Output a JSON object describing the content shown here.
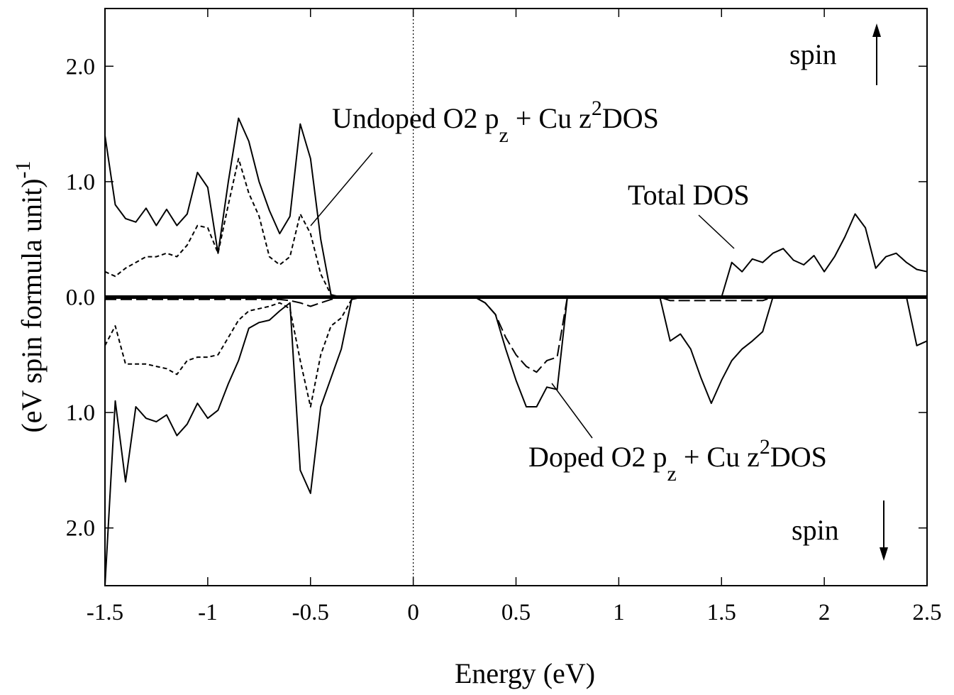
{
  "chart_data": {
    "type": "line",
    "xlabel": "Energy (eV)",
    "ylabel_parts": [
      "(eV spin formula unit)",
      "-1"
    ],
    "xlim": [
      -1.5,
      2.5
    ],
    "ylim": [
      -2.5,
      2.5
    ],
    "xticks": [
      -1.5,
      -1,
      -0.5,
      0,
      0.5,
      1,
      1.5,
      2,
      2.5
    ],
    "yticks": [
      {
        "value": 2,
        "label": "2.0"
      },
      {
        "value": 1,
        "label": "1.0"
      },
      {
        "value": 0,
        "label": "0.0"
      },
      {
        "value": -1,
        "label": "1.0"
      },
      {
        "value": -2,
        "label": "2.0"
      }
    ],
    "vline": 0,
    "hline": 0,
    "x": [
      -1.5,
      -1.45,
      -1.4,
      -1.35,
      -1.3,
      -1.25,
      -1.2,
      -1.15,
      -1.1,
      -1.05,
      -1,
      -0.95,
      -0.9,
      -0.85,
      -0.8,
      -0.75,
      -0.7,
      -0.65,
      -0.6,
      -0.55,
      -0.5,
      -0.45,
      -0.4,
      -0.35,
      -0.3,
      -0.25,
      -0.2,
      -0.15,
      -0.1,
      -0.05,
      0,
      0.05,
      0.1,
      0.15,
      0.2,
      0.25,
      0.3,
      0.35,
      0.4,
      0.45,
      0.5,
      0.55,
      0.6,
      0.65,
      0.7,
      0.75,
      0.8,
      0.85,
      0.9,
      0.95,
      1,
      1.05,
      1.1,
      1.15,
      1.2,
      1.25,
      1.3,
      1.35,
      1.4,
      1.45,
      1.5,
      1.55,
      1.6,
      1.65,
      1.7,
      1.75,
      1.8,
      1.85,
      1.9,
      1.95,
      2,
      2.05,
      2.1,
      2.15,
      2.2,
      2.25,
      2.3,
      2.35,
      2.4,
      2.45,
      2.5
    ],
    "series": [
      {
        "color": "#000000",
        "style": "solid",
        "values": [
          1.4,
          0.8,
          0.68,
          0.65,
          0.77,
          0.62,
          0.76,
          0.62,
          0.72,
          1.08,
          0.95,
          0.38,
          1,
          1.55,
          1.35,
          1,
          0.75,
          0.55,
          0.7,
          1.5,
          1.2,
          0.5,
          0.02,
          0,
          0,
          0,
          0,
          0,
          0,
          0,
          0,
          0,
          0,
          0,
          0,
          0,
          0,
          0,
          0,
          0,
          0,
          0,
          0,
          0,
          0,
          0,
          0,
          0,
          0,
          0,
          0,
          0,
          0,
          0,
          0,
          0,
          0,
          0,
          0,
          0,
          0,
          0.3,
          0.22,
          0.33,
          0.3,
          0.38,
          0.42,
          0.32,
          0.28,
          0.36,
          0.22,
          0.35,
          0.52,
          0.72,
          0.6,
          0.25,
          0.35,
          0.38,
          0.3,
          0.24,
          0.22
        ]
      },
      {
        "color": "#000000",
        "style": "dotted",
        "values": [
          0.22,
          0.18,
          0.25,
          0.3,
          0.35,
          0.35,
          0.38,
          0.35,
          0.45,
          0.62,
          0.6,
          0.38,
          0.8,
          1.2,
          0.9,
          0.7,
          0.35,
          0.28,
          0.35,
          0.72,
          0.55,
          0.2,
          0.02,
          0,
          0,
          0,
          0,
          0,
          0,
          0,
          0,
          0,
          0,
          0,
          0,
          0,
          0,
          0,
          0,
          0,
          0,
          0,
          0,
          0,
          0,
          0,
          0,
          0,
          0,
          0,
          0,
          0,
          0,
          0,
          0,
          0,
          0,
          0,
          0,
          0,
          0,
          0,
          0,
          0,
          0,
          0,
          0,
          0,
          0,
          0,
          0,
          0,
          0,
          0,
          0,
          0,
          0,
          0,
          0,
          0,
          0
        ]
      },
      {
        "color": "#000000",
        "style": "solid",
        "values": [
          -2.5,
          -0.9,
          -1.6,
          -0.95,
          -1.05,
          -1.08,
          -1.02,
          -1.2,
          -1.1,
          -0.92,
          -1.05,
          -0.98,
          -0.75,
          -0.55,
          -0.27,
          -0.22,
          -0.2,
          -0.12,
          -0.05,
          -1.5,
          -1.7,
          -0.95,
          -0.7,
          -0.45,
          -0.02,
          0,
          0,
          0,
          0,
          0,
          0,
          0,
          0,
          0,
          0,
          0,
          0,
          -0.05,
          -0.15,
          -0.45,
          -0.72,
          -0.95,
          -0.95,
          -0.78,
          -0.8,
          0,
          0,
          0,
          0,
          0,
          0,
          0,
          0,
          0,
          0,
          -0.38,
          -0.32,
          -0.45,
          -0.7,
          -0.92,
          -0.72,
          -0.55,
          -0.45,
          -0.38,
          -0.3,
          0,
          0,
          0,
          0,
          0,
          0,
          0,
          0,
          0,
          0,
          0,
          0,
          0,
          0,
          -0.42,
          -0.38
        ]
      },
      {
        "color": "#000000",
        "style": "dotted",
        "values": [
          -0.42,
          -0.25,
          -0.58,
          -0.58,
          -0.58,
          -0.6,
          -0.62,
          -0.67,
          -0.55,
          -0.52,
          -0.52,
          -0.5,
          -0.35,
          -0.2,
          -0.12,
          -0.1,
          -0.08,
          -0.05,
          -0.1,
          -0.55,
          -0.95,
          -0.5,
          -0.25,
          -0.18,
          -0.02,
          0,
          0,
          0,
          0,
          0,
          0,
          0,
          0,
          0,
          0,
          0,
          0,
          0,
          0,
          0,
          0,
          0,
          0,
          0,
          0,
          0,
          0,
          0,
          0,
          0,
          0,
          0,
          0,
          0,
          0,
          0,
          0,
          0,
          0,
          0,
          0,
          0,
          0,
          0,
          0,
          0,
          0,
          0,
          0,
          0,
          0,
          0,
          0,
          0,
          0,
          0,
          0,
          0,
          0,
          0,
          0
        ]
      },
      {
        "color": "#000000",
        "style": "dashed",
        "values": [
          -0.02,
          -0.02,
          -0.02,
          -0.02,
          -0.02,
          -0.02,
          -0.02,
          -0.02,
          -0.02,
          -0.02,
          -0.02,
          -0.02,
          -0.02,
          -0.02,
          -0.02,
          -0.02,
          -0.02,
          -0.02,
          -0.03,
          -0.05,
          -0.08,
          -0.05,
          -0.02,
          0,
          0,
          0,
          0,
          0,
          0,
          0,
          0,
          0,
          0,
          0,
          0,
          0,
          0,
          -0.05,
          -0.15,
          -0.35,
          -0.5,
          -0.6,
          -0.65,
          -0.55,
          -0.52,
          0,
          0,
          0,
          0,
          0,
          0,
          0,
          0,
          0,
          0,
          -0.03,
          -0.03,
          -0.03,
          -0.03,
          -0.03,
          -0.03,
          -0.03,
          -0.03,
          -0.03,
          -0.03,
          0,
          0,
          0,
          0,
          0,
          0,
          0,
          0,
          0,
          0,
          0,
          0,
          0,
          0,
          0,
          0
        ]
      }
    ],
    "annotations": [
      {
        "parts": [
          "Undoped O2 p",
          "z",
          "+ Cu z",
          "2",
          "DOS"
        ]
      },
      {
        "text": "Total DOS"
      },
      {
        "parts": [
          "Doped O2 p",
          "z",
          "+ Cu z",
          "2",
          "DOS"
        ]
      },
      {
        "text": "spin"
      },
      {
        "text": "spin"
      }
    ]
  }
}
